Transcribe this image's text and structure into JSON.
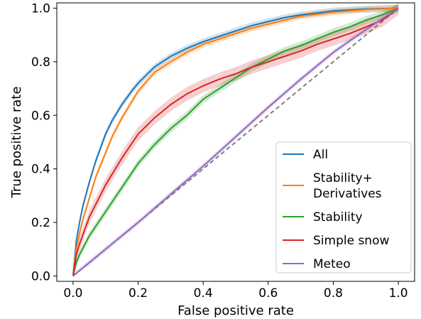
{
  "chart_data": {
    "type": "line",
    "xlabel": "False positive rate",
    "ylabel": "True positive rate",
    "xlim": [
      -0.05,
      1.05
    ],
    "ylim": [
      -0.02,
      1.02
    ],
    "xticks": [
      0.0,
      0.2,
      0.4,
      0.6,
      0.8,
      1.0
    ],
    "yticks": [
      0.0,
      0.2,
      0.4,
      0.6,
      0.8,
      1.0
    ],
    "tick_labels": [
      "0.0",
      "0.2",
      "0.4",
      "0.6",
      "0.8",
      "1.0"
    ],
    "grid": false,
    "legend_position": "lower-right",
    "series": [
      {
        "name": "All",
        "color": "#1f77b4",
        "x": [
          0,
          0.01,
          0.02,
          0.03,
          0.05,
          0.07,
          0.1,
          0.12,
          0.15,
          0.18,
          0.2,
          0.25,
          0.3,
          0.35,
          0.4,
          0.45,
          0.5,
          0.55,
          0.6,
          0.65,
          0.7,
          0.8,
          0.9,
          1.0
        ],
        "y": [
          0,
          0.13,
          0.2,
          0.26,
          0.35,
          0.43,
          0.53,
          0.58,
          0.64,
          0.69,
          0.72,
          0.78,
          0.82,
          0.85,
          0.875,
          0.895,
          0.915,
          0.935,
          0.95,
          0.965,
          0.975,
          0.99,
          0.997,
          1.0
        ],
        "band": 0.012
      },
      {
        "name": "Stability+\nDerivatives",
        "color": "#ff7f0e",
        "x": [
          0,
          0.01,
          0.02,
          0.03,
          0.05,
          0.07,
          0.1,
          0.12,
          0.15,
          0.18,
          0.2,
          0.25,
          0.3,
          0.35,
          0.4,
          0.45,
          0.5,
          0.55,
          0.6,
          0.65,
          0.7,
          0.8,
          0.9,
          1.0
        ],
        "y": [
          0,
          0.1,
          0.16,
          0.21,
          0.29,
          0.37,
          0.46,
          0.52,
          0.59,
          0.65,
          0.69,
          0.76,
          0.8,
          0.835,
          0.865,
          0.885,
          0.905,
          0.925,
          0.94,
          0.955,
          0.97,
          0.985,
          0.995,
          1.0
        ],
        "band": 0.012
      },
      {
        "name": "Stability",
        "color": "#2ca02c",
        "x": [
          0,
          0.01,
          0.02,
          0.05,
          0.1,
          0.15,
          0.2,
          0.25,
          0.3,
          0.35,
          0.4,
          0.45,
          0.5,
          0.55,
          0.6,
          0.65,
          0.7,
          0.75,
          0.8,
          0.85,
          0.9,
          0.95,
          1.0
        ],
        "y": [
          0,
          0.05,
          0.08,
          0.15,
          0.24,
          0.33,
          0.42,
          0.49,
          0.55,
          0.6,
          0.66,
          0.7,
          0.74,
          0.78,
          0.81,
          0.84,
          0.86,
          0.885,
          0.91,
          0.93,
          0.955,
          0.975,
          1.0
        ],
        "band": 0.015
      },
      {
        "name": "Simple snow",
        "color": "#d62728",
        "x": [
          0,
          0.01,
          0.02,
          0.05,
          0.1,
          0.15,
          0.2,
          0.25,
          0.3,
          0.35,
          0.4,
          0.45,
          0.5,
          0.55,
          0.6,
          0.65,
          0.7,
          0.75,
          0.8,
          0.85,
          0.9,
          0.95,
          1.0
        ],
        "y": [
          0,
          0.08,
          0.12,
          0.22,
          0.34,
          0.44,
          0.53,
          0.59,
          0.64,
          0.68,
          0.71,
          0.735,
          0.755,
          0.78,
          0.8,
          0.82,
          0.84,
          0.865,
          0.885,
          0.905,
          0.93,
          0.955,
          1.0
        ],
        "band": 0.025
      },
      {
        "name": "Meteo",
        "color": "#9467bd",
        "x": [
          0,
          0.05,
          0.1,
          0.2,
          0.3,
          0.4,
          0.5,
          0.6,
          0.7,
          0.8,
          0.9,
          1.0
        ],
        "y": [
          0,
          0.05,
          0.1,
          0.2,
          0.305,
          0.41,
          0.52,
          0.63,
          0.735,
          0.835,
          0.92,
          1.0
        ],
        "band": 0.01
      }
    ],
    "reference_line": {
      "x": [
        0,
        1
      ],
      "y": [
        0,
        1
      ],
      "color": "#808080",
      "style": "dashed"
    }
  }
}
